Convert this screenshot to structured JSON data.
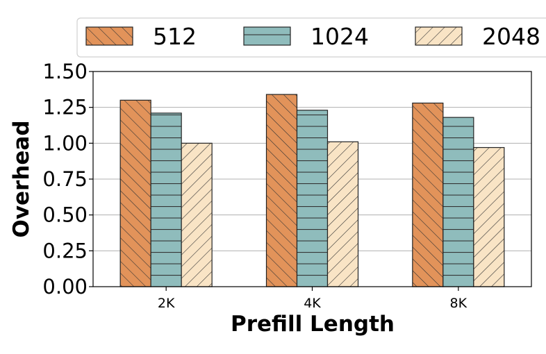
{
  "chart_data": {
    "type": "bar",
    "categories": [
      "2K",
      "4K",
      "8K"
    ],
    "series": [
      {
        "name": "512",
        "values": [
          1.3,
          1.34,
          1.28
        ],
        "color": "#E2935A",
        "hatch": "backslash"
      },
      {
        "name": "1024",
        "values": [
          1.21,
          1.23,
          1.18
        ],
        "color": "#8FBCBC",
        "hatch": "horizontal"
      },
      {
        "name": "2048",
        "values": [
          1.0,
          1.01,
          0.97
        ],
        "color": "#F9E4C5",
        "hatch": "forwardslash"
      }
    ],
    "title": "",
    "xlabel": "Prefill Length",
    "ylabel": "Overhead",
    "ylim": [
      0,
      1.5
    ],
    "yticks": [
      "0.00",
      "0.25",
      "0.50",
      "0.75",
      "1.00",
      "1.25",
      "1.50"
    ],
    "grid": true,
    "legend_position": "top"
  }
}
